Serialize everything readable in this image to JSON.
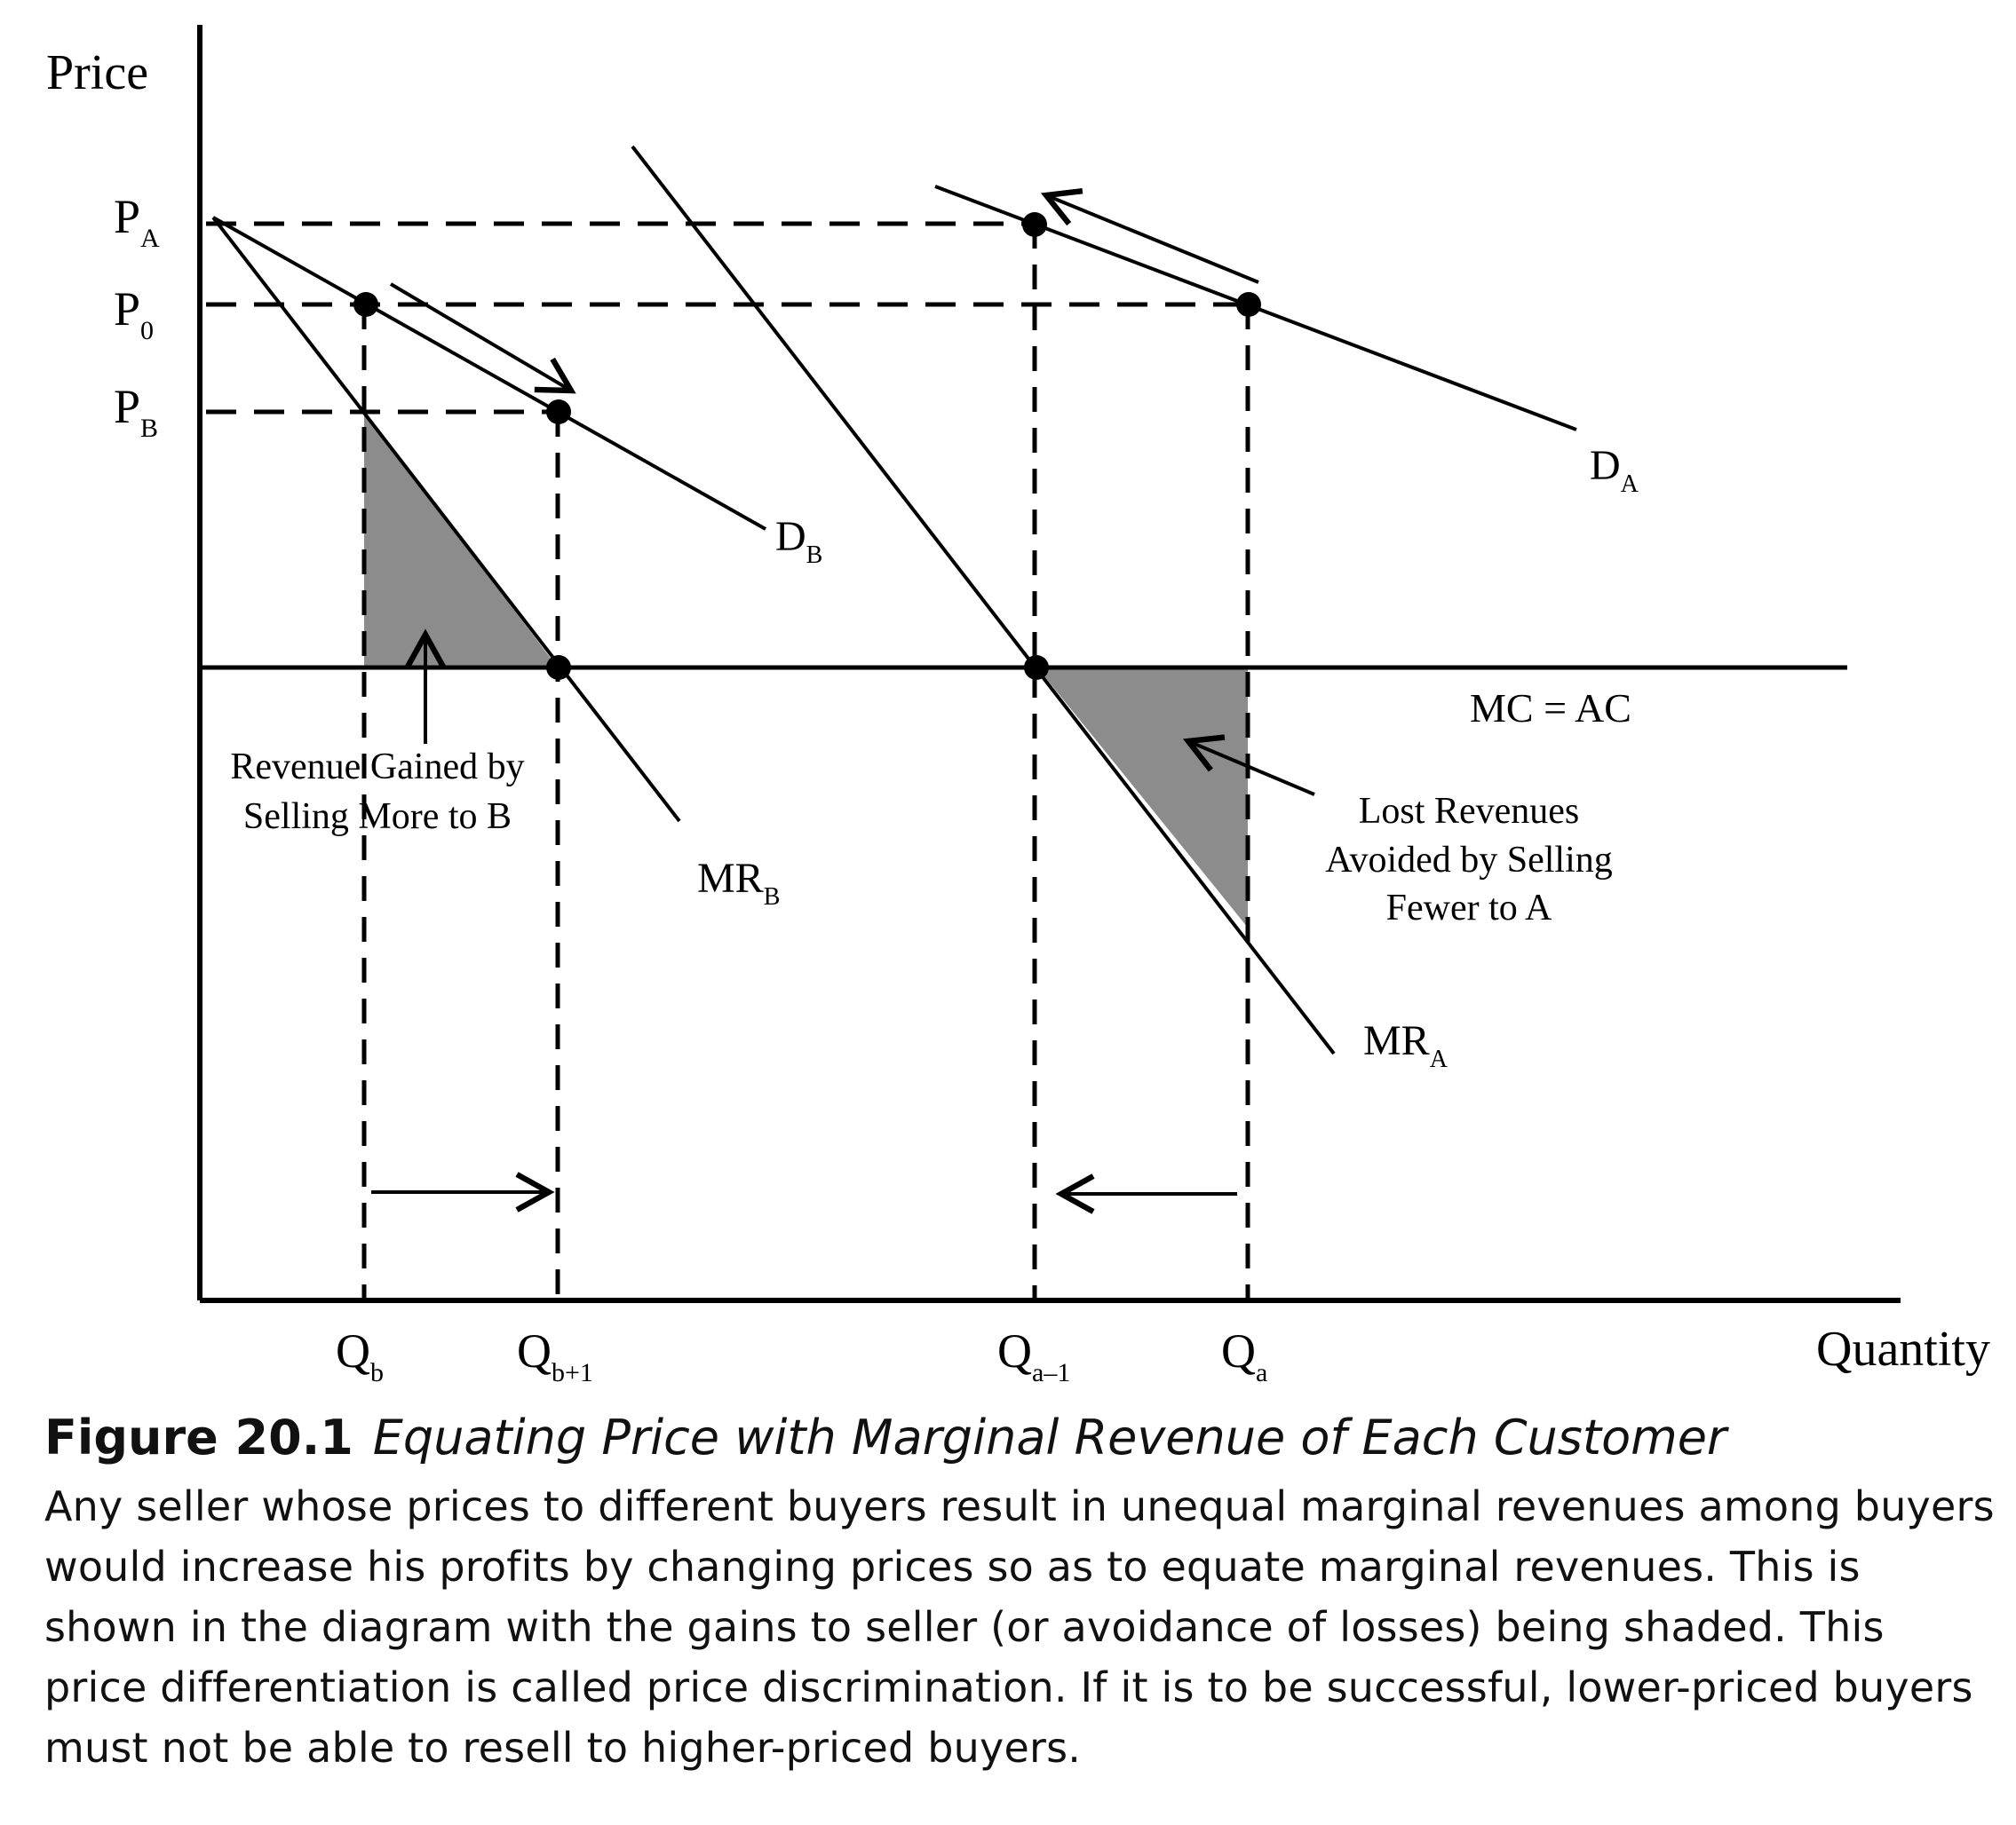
{
  "axes": {
    "y_label": "Price",
    "x_label": "Quantity"
  },
  "price_labels": {
    "pa": {
      "main": "P",
      "sub": "A"
    },
    "p0": {
      "main": "P",
      "sub": "0"
    },
    "pb": {
      "main": "P",
      "sub": "B"
    }
  },
  "quantity_labels": {
    "qb": {
      "main": "Q",
      "sub": "b"
    },
    "qb1": {
      "main": "Q",
      "sub": "b+1"
    },
    "qa1": {
      "main": "Q",
      "sub": "a–1"
    },
    "qa": {
      "main": "Q",
      "sub": "a"
    }
  },
  "curve_labels": {
    "da": {
      "main": "D",
      "sub": "A"
    },
    "db": {
      "main": "D",
      "sub": "B"
    },
    "mrb": {
      "main": "MR",
      "sub": "B"
    },
    "mra": {
      "main": "MR",
      "sub": "A"
    },
    "mc": "MC = AC"
  },
  "annotations": {
    "gain_line1": "Revenue Gained by",
    "gain_line2": "Selling More to B",
    "loss_line1": "Lost Revenues",
    "loss_line2": "Avoided by Selling",
    "loss_line3": "Fewer to A"
  },
  "caption": {
    "number": "Figure 20.1",
    "title": "Equating Price with Marginal Revenue of Each Customer",
    "body": "Any seller whose prices to different buyers result in unequal marginal revenues among buyers would increase his profits by changing prices so as to equate marginal revenues. This is shown in the diagram with the gains to seller (or avoidance of losses) being shaded. This price differentiation is called price discrimination. If it is to be successful, lower-priced buyers must not be able to resell to higher-priced buyers."
  },
  "colors": {
    "shade": "#8c8c8c",
    "ink": "#000000"
  }
}
